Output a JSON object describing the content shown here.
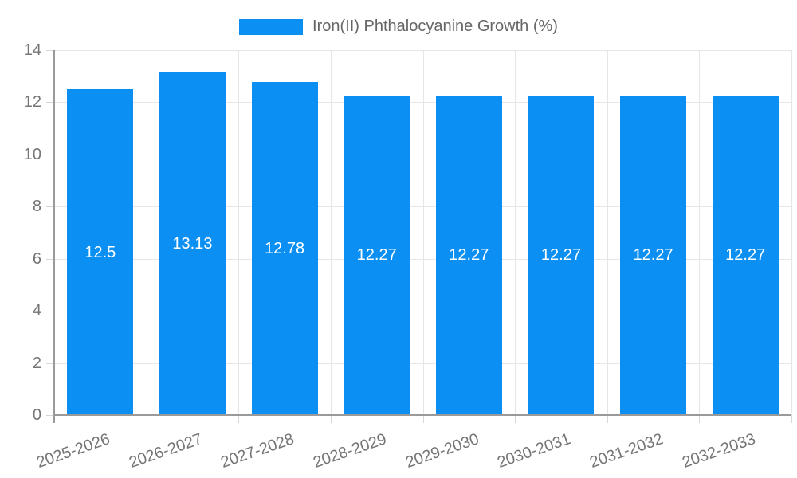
{
  "chart_data": {
    "type": "bar",
    "title": "",
    "xlabel": "",
    "ylabel": "",
    "legend_position": "top",
    "grid": true,
    "categories": [
      "2025-2026",
      "2026-2027",
      "2027-2028",
      "2028-2029",
      "2029-2030",
      "2030-2031",
      "2031-2032",
      "2032-2033"
    ],
    "series": [
      {
        "name": "Iron(II) Phthalocyanine Growth (%)",
        "values": [
          12.5,
          13.13,
          12.78,
          12.27,
          12.27,
          12.27,
          12.27,
          12.27
        ],
        "value_labels": [
          "12.5",
          "13.13",
          "12.78",
          "12.27",
          "12.27",
          "12.27",
          "12.27",
          "12.27"
        ],
        "color": "#0b8ff2"
      }
    ],
    "ylim": [
      0,
      14
    ],
    "yticks": [
      0,
      2,
      4,
      6,
      8,
      10,
      12,
      14
    ],
    "ytick_labels": [
      "0",
      "2",
      "4",
      "6",
      "8",
      "10",
      "12",
      "14"
    ]
  },
  "colors": {
    "bar": "#0b8ff2",
    "gridline": "#e6e6e6",
    "tick": "#d6d6d6",
    "axis_line": "#9a9a9a",
    "axis_text": "#757575",
    "legend_text": "#666666",
    "value_label_text": "#ffffff",
    "background": "#ffffff"
  }
}
